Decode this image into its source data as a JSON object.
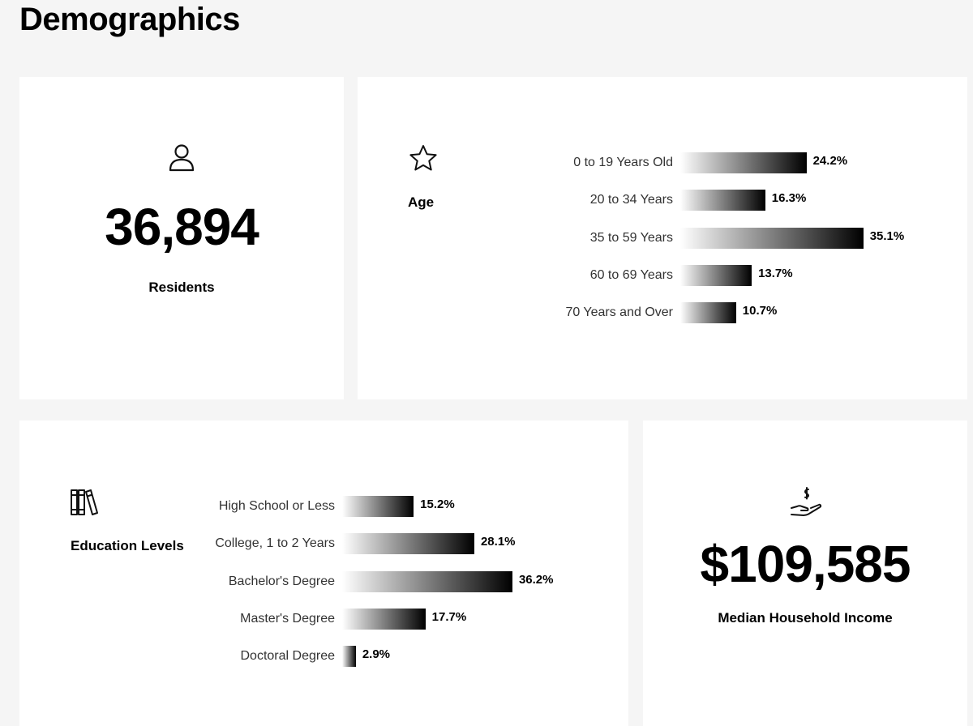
{
  "page": {
    "title": "Demographics"
  },
  "residents": {
    "value": "36,894",
    "label": "Residents",
    "icon": "person-icon"
  },
  "income": {
    "value": "$109,585",
    "label": "Median Household Income",
    "icon": "hand-dollar-icon"
  },
  "chart_data": [
    {
      "type": "bar",
      "orientation": "horizontal",
      "title": "Age",
      "icon": "star-icon",
      "categories": [
        "0 to 19 Years Old",
        "20 to 34 Years",
        "35 to 59 Years",
        "60 to 69 Years",
        "70 Years and Over"
      ],
      "values": [
        24.2,
        16.3,
        35.1,
        13.7,
        10.7
      ],
      "value_labels": [
        "24.2%",
        "16.3%",
        "35.1%",
        "13.7%",
        "10.7%"
      ],
      "unit": "%",
      "grid": false,
      "legend": "none",
      "bar_fill": "gradient white to #000000"
    },
    {
      "type": "bar",
      "orientation": "horizontal",
      "title": "Education Levels",
      "icon": "books-icon",
      "categories": [
        "High School or Less",
        "College, 1 to 2 Years",
        "Bachelor's Degree",
        "Master's Degree",
        "Doctoral Degree"
      ],
      "values": [
        15.2,
        28.1,
        36.2,
        17.7,
        2.9
      ],
      "value_labels": [
        "15.2%",
        "28.1%",
        "36.2%",
        "17.7%",
        "2.9%"
      ],
      "unit": "%",
      "grid": false,
      "legend": "none",
      "bar_fill": "gradient white to #000000"
    }
  ]
}
